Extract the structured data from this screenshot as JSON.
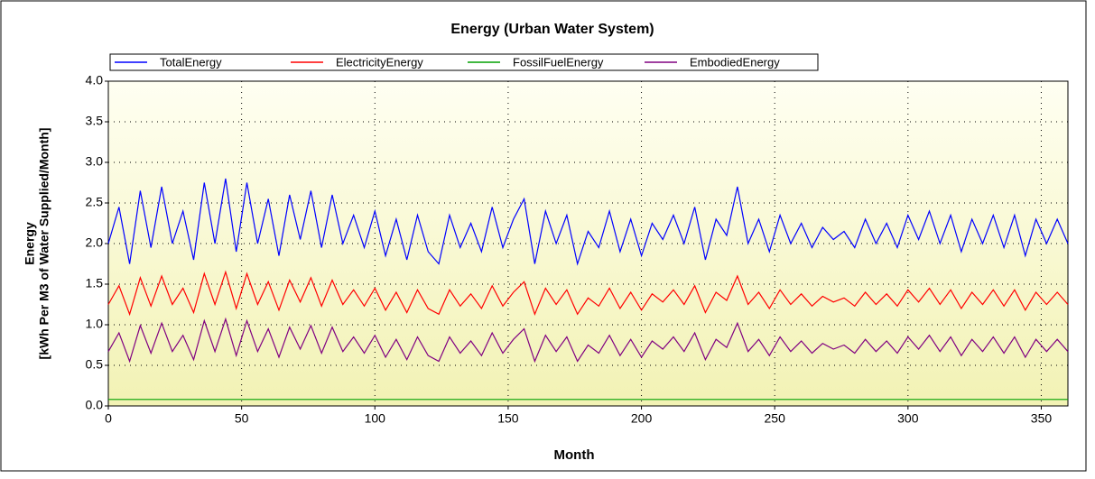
{
  "chart_data": {
    "type": "line",
    "title": "Energy (Urban Water System)",
    "x_label": "Month",
    "y_label": [
      "Energy",
      "[kWh Per M3 of Water Supplied/Month]"
    ],
    "x": [
      0,
      4,
      8,
      12,
      16,
      20,
      24,
      28,
      32,
      36,
      40,
      44,
      48,
      52,
      56,
      60,
      64,
      68,
      72,
      76,
      80,
      84,
      88,
      92,
      96,
      100,
      104,
      108,
      112,
      116,
      120,
      124,
      128,
      132,
      136,
      140,
      144,
      148,
      152,
      156,
      160,
      164,
      168,
      172,
      176,
      180,
      184,
      188,
      192,
      196,
      200,
      204,
      208,
      212,
      216,
      220,
      224,
      228,
      232,
      236,
      240,
      244,
      248,
      252,
      256,
      260,
      264,
      268,
      272,
      276,
      280,
      284,
      288,
      292,
      296,
      300,
      304,
      308,
      312,
      316,
      320,
      324,
      328,
      332,
      336,
      340,
      344,
      348,
      352,
      356,
      360
    ],
    "series": [
      {
        "name": "TotalEnergy",
        "color": "#0000ff",
        "values": [
          2.0,
          2.45,
          1.75,
          2.65,
          1.95,
          2.7,
          2.0,
          2.4,
          1.8,
          2.75,
          2.0,
          2.8,
          1.9,
          2.75,
          2.0,
          2.55,
          1.85,
          2.6,
          2.05,
          2.65,
          1.95,
          2.6,
          2.0,
          2.35,
          1.95,
          2.4,
          1.85,
          2.3,
          1.8,
          2.35,
          1.9,
          1.75,
          2.35,
          1.95,
          2.25,
          1.9,
          2.45,
          1.95,
          2.3,
          2.55,
          1.75,
          2.4,
          2.0,
          2.35,
          1.75,
          2.15,
          1.95,
          2.4,
          1.9,
          2.3,
          1.85,
          2.25,
          2.05,
          2.35,
          2.0,
          2.45,
          1.8,
          2.3,
          2.1,
          2.7,
          2.0,
          2.3,
          1.9,
          2.35,
          2.0,
          2.25,
          1.95,
          2.2,
          2.05,
          2.15,
          1.95,
          2.3,
          2.0,
          2.25,
          1.95,
          2.35,
          2.05,
          2.4,
          2.0,
          2.35,
          1.9,
          2.3,
          2.0,
          2.35,
          1.95,
          2.35,
          1.85,
          2.3,
          2.0,
          2.3,
          2.0
        ]
      },
      {
        "name": "ElectricityEnergy",
        "color": "#ff0000",
        "values": [
          1.25,
          1.48,
          1.13,
          1.58,
          1.23,
          1.6,
          1.25,
          1.45,
          1.15,
          1.63,
          1.25,
          1.65,
          1.2,
          1.63,
          1.25,
          1.53,
          1.18,
          1.55,
          1.28,
          1.58,
          1.23,
          1.55,
          1.25,
          1.43,
          1.23,
          1.45,
          1.18,
          1.4,
          1.15,
          1.43,
          1.2,
          1.13,
          1.43,
          1.23,
          1.38,
          1.2,
          1.48,
          1.23,
          1.4,
          1.53,
          1.13,
          1.45,
          1.25,
          1.43,
          1.13,
          1.33,
          1.23,
          1.45,
          1.2,
          1.4,
          1.18,
          1.38,
          1.28,
          1.43,
          1.25,
          1.48,
          1.15,
          1.4,
          1.3,
          1.6,
          1.25,
          1.4,
          1.2,
          1.43,
          1.25,
          1.38,
          1.23,
          1.35,
          1.28,
          1.33,
          1.23,
          1.4,
          1.25,
          1.38,
          1.23,
          1.43,
          1.28,
          1.45,
          1.25,
          1.43,
          1.2,
          1.4,
          1.25,
          1.43,
          1.23,
          1.43,
          1.18,
          1.4,
          1.25,
          1.4,
          1.25
        ]
      },
      {
        "name": "FossilFuelEnergy",
        "color": "#00a000",
        "values": [
          0.08,
          0.08,
          0.08,
          0.08,
          0.08,
          0.08,
          0.08,
          0.08,
          0.08,
          0.08,
          0.08,
          0.08,
          0.08,
          0.08,
          0.08,
          0.08,
          0.08,
          0.08,
          0.08,
          0.08,
          0.08,
          0.08,
          0.08,
          0.08,
          0.08,
          0.08,
          0.08,
          0.08,
          0.08,
          0.08,
          0.08,
          0.08,
          0.08,
          0.08,
          0.08,
          0.08,
          0.08,
          0.08,
          0.08,
          0.08,
          0.08,
          0.08,
          0.08,
          0.08,
          0.08,
          0.08,
          0.08,
          0.08,
          0.08,
          0.08,
          0.08,
          0.08,
          0.08,
          0.08,
          0.08,
          0.08,
          0.08,
          0.08,
          0.08,
          0.08,
          0.08,
          0.08,
          0.08,
          0.08,
          0.08,
          0.08,
          0.08,
          0.08,
          0.08,
          0.08,
          0.08,
          0.08,
          0.08,
          0.08,
          0.08,
          0.08,
          0.08,
          0.08,
          0.08,
          0.08,
          0.08,
          0.08,
          0.08,
          0.08,
          0.08,
          0.08,
          0.08,
          0.08,
          0.08,
          0.08,
          0.08
        ]
      },
      {
        "name": "EmbodiedEnergy",
        "color": "#800080",
        "values": [
          0.67,
          0.9,
          0.55,
          0.99,
          0.65,
          1.02,
          0.67,
          0.87,
          0.57,
          1.05,
          0.67,
          1.07,
          0.62,
          1.05,
          0.67,
          0.95,
          0.6,
          0.97,
          0.7,
          0.99,
          0.65,
          0.97,
          0.67,
          0.85,
          0.65,
          0.87,
          0.6,
          0.82,
          0.57,
          0.85,
          0.62,
          0.55,
          0.85,
          0.65,
          0.8,
          0.62,
          0.9,
          0.65,
          0.82,
          0.95,
          0.55,
          0.87,
          0.67,
          0.85,
          0.55,
          0.75,
          0.65,
          0.87,
          0.62,
          0.82,
          0.6,
          0.8,
          0.7,
          0.85,
          0.67,
          0.9,
          0.57,
          0.82,
          0.72,
          1.02,
          0.67,
          0.82,
          0.62,
          0.85,
          0.67,
          0.8,
          0.65,
          0.77,
          0.7,
          0.75,
          0.65,
          0.82,
          0.67,
          0.8,
          0.65,
          0.85,
          0.7,
          0.87,
          0.67,
          0.85,
          0.62,
          0.82,
          0.67,
          0.85,
          0.65,
          0.85,
          0.6,
          0.82,
          0.67,
          0.82,
          0.67
        ]
      }
    ],
    "xlim": [
      0,
      360
    ],
    "xticks": [
      0,
      50,
      100,
      150,
      200,
      250,
      300,
      350
    ],
    "ylim": [
      0,
      4
    ],
    "yticks": [
      {
        "value": 0,
        "label": "0.0"
      },
      0.5,
      {
        "value": 1,
        "label": "1.0"
      },
      1.5,
      {
        "value": 2,
        "label": "2.0"
      },
      2.5,
      {
        "value": 3,
        "label": "3.0"
      },
      3.5,
      {
        "value": 4,
        "label": "4.0"
      }
    ],
    "grid": true
  }
}
